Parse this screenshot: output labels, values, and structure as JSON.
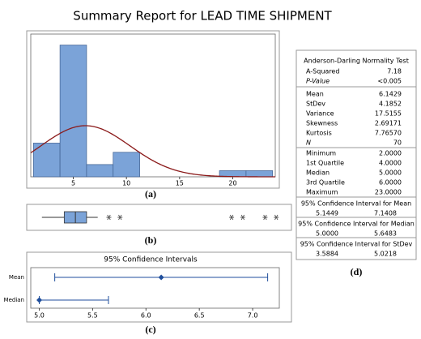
{
  "title": "Summary Report for LEAD TIME SHIPMENT",
  "chart_data": [
    {
      "type": "histogram",
      "caption": "(a)",
      "bins": [
        1.25,
        3.75,
        6.25,
        8.75,
        11.25,
        13.75,
        16.25,
        18.75,
        21.25,
        23.75
      ],
      "counts": [
        11,
        43,
        4,
        8,
        0,
        0,
        0,
        2,
        2
      ],
      "color": "#7ba3d8",
      "fit": {
        "type": "normal",
        "mean": 6.1429,
        "stdev": 4.1852,
        "color": "#8b1a1a"
      },
      "xlim": [
        1,
        24
      ],
      "xticks": [
        5,
        10,
        15,
        20
      ],
      "ylim": [
        0,
        45
      ]
    },
    {
      "type": "box",
      "caption": "(b)",
      "color": "#7ba3d8",
      "whisker_low": 2,
      "q1": 4,
      "median": 5,
      "q3": 6,
      "whisker_high": 7,
      "outliers": [
        8,
        9,
        19,
        20,
        22,
        23
      ],
      "xlim": [
        1,
        24
      ]
    },
    {
      "type": "interval",
      "title": "95% Confidence Intervals",
      "caption": "(c)",
      "color": "#1f4e9c",
      "categories": [
        "Mean",
        "Median"
      ],
      "values": [
        6.1429,
        5.0
      ],
      "low": [
        5.1449,
        5.0
      ],
      "high": [
        7.1408,
        5.6483
      ],
      "xlim": [
        4.92,
        7.25
      ],
      "xticks": [
        {
          "value": 5,
          "label": "5.0"
        },
        5.5,
        {
          "value": 6,
          "label": "6.0"
        },
        6.5,
        {
          "value": 7,
          "label": "7.0"
        }
      ]
    }
  ],
  "summary": {
    "heading": "Anderson-Darling Normality Test",
    "test": [
      [
        "A-Squared",
        "7.18"
      ],
      [
        "P-Value",
        "<0.005"
      ]
    ],
    "moments": [
      [
        "Mean",
        "6.1429"
      ],
      [
        "StDev",
        "4.1852"
      ],
      [
        "Variance",
        "17.5155"
      ],
      [
        "Skewness",
        "2.69171"
      ],
      [
        "Kurtosis",
        "7.76570"
      ],
      [
        "N",
        "70"
      ]
    ],
    "quantiles": [
      [
        "Minimum",
        "2.0000"
      ],
      [
        "1st Quartile",
        "4.0000"
      ],
      [
        "Median",
        "5.0000"
      ],
      [
        "3rd Quartile",
        "6.0000"
      ],
      [
        "Maximum",
        "23.0000"
      ]
    ],
    "intervals": [
      {
        "title": "95% Confidence Interval for Mean",
        "low": "5.1449",
        "high": "7.1408"
      },
      {
        "title": "95% Confidence Interval for Median",
        "low": "5.0000",
        "high": "5.6483"
      },
      {
        "title": "95% Confidence Interval for StDev",
        "low": "3.5884",
        "high": "5.0218"
      }
    ],
    "caption": "(d)"
  }
}
